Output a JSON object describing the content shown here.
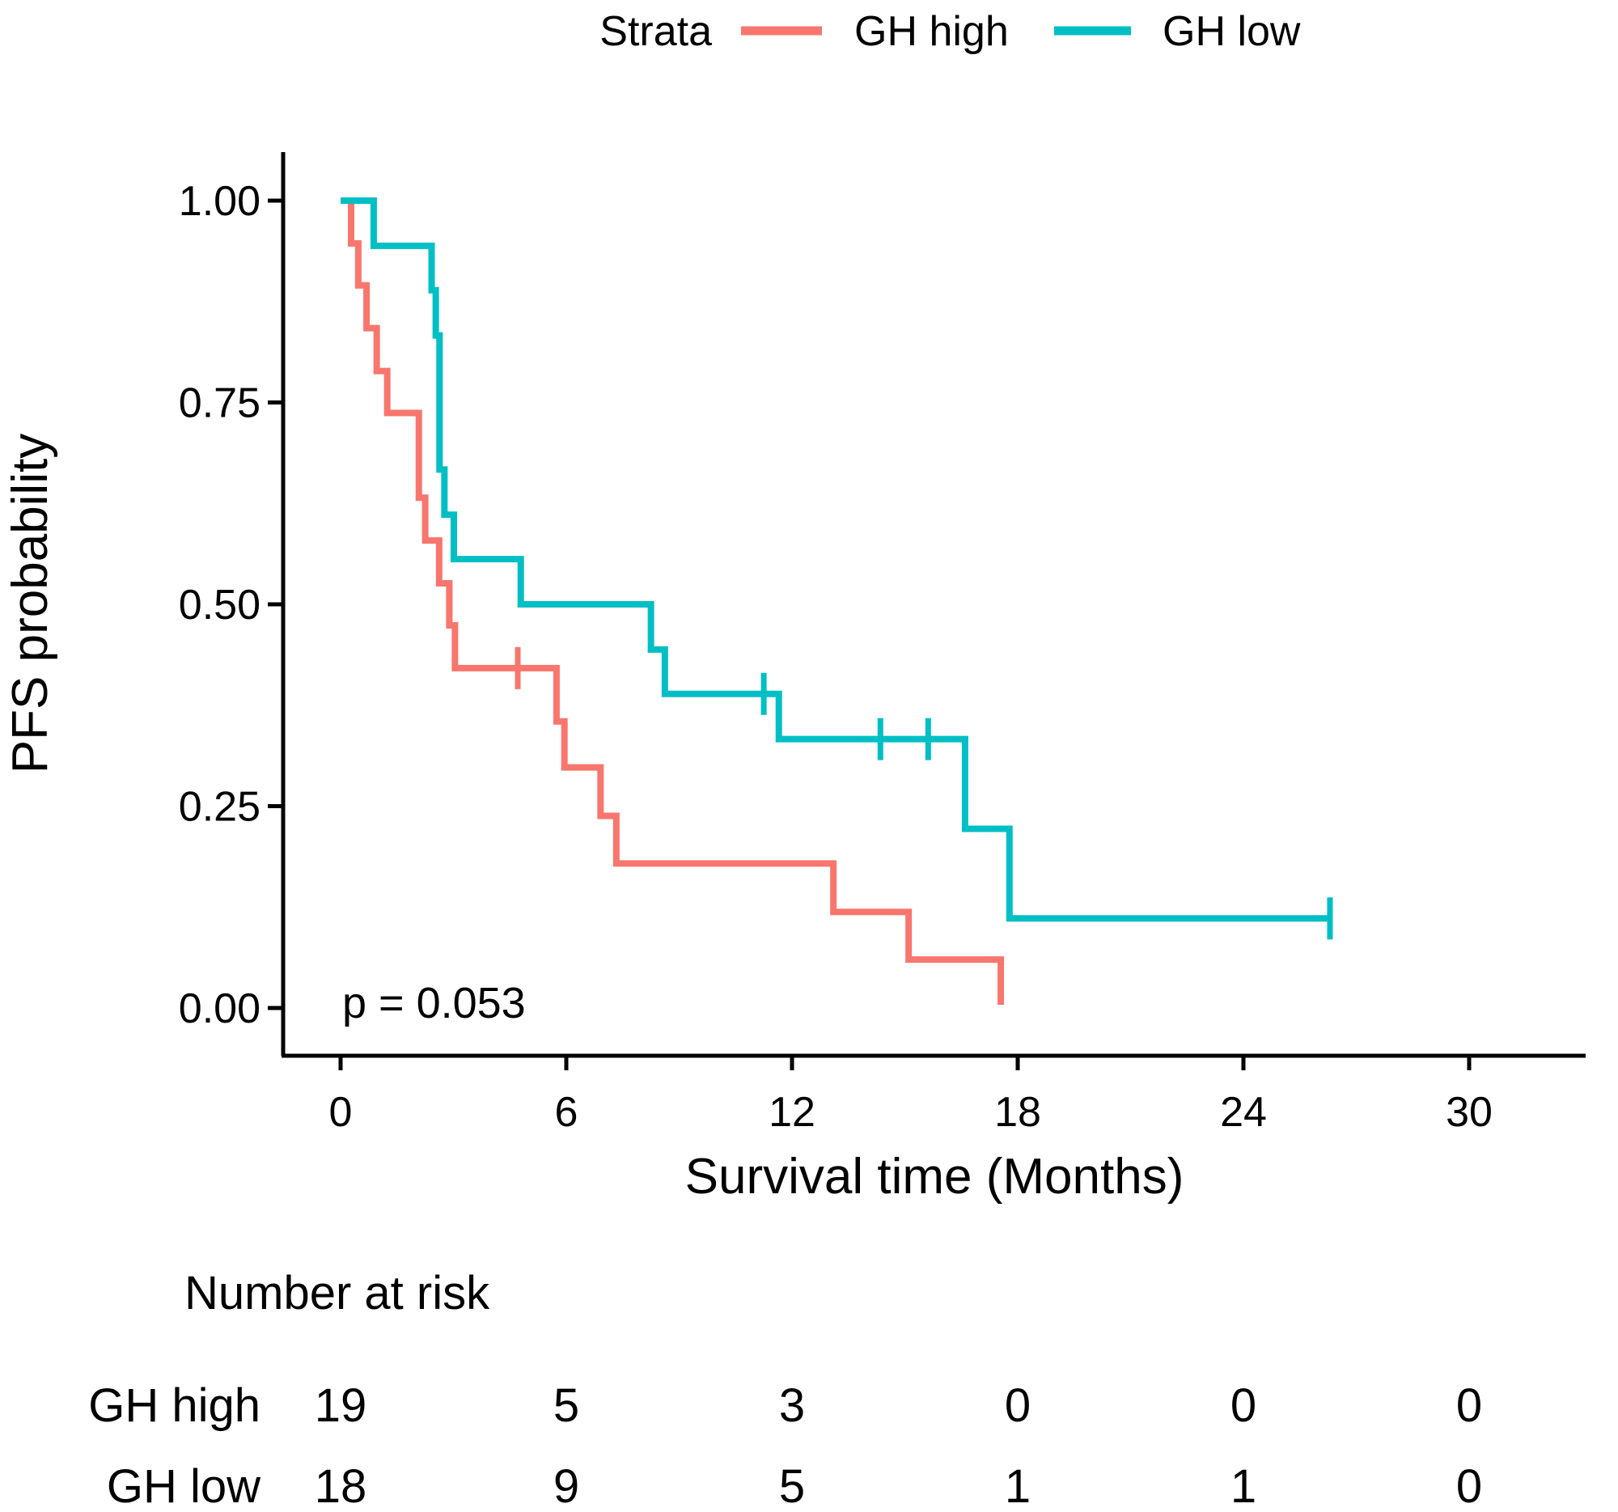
{
  "legend": {
    "title": "Strata",
    "items": [
      {
        "label": "GH high",
        "color": "#F8766D"
      },
      {
        "label": "GH low",
        "color": "#00BFC4"
      }
    ]
  },
  "chart_data": {
    "type": "line",
    "subtype": "kaplan-meier-step",
    "title": "",
    "xlabel": "Survival time (Months)",
    "ylabel": "PFS probability",
    "annotation": "p = 0.053",
    "xlim": [
      0,
      33
    ],
    "ylim": [
      0,
      1
    ],
    "xticks": [
      0,
      6,
      12,
      18,
      24,
      30
    ],
    "ytick_labels": [
      "0.00",
      "0.25",
      "0.50",
      "0.75",
      "1.00"
    ],
    "ytick_values": [
      0,
      0.25,
      0.5,
      0.75,
      1
    ],
    "grid": false,
    "legend_position": "top",
    "series": [
      {
        "name": "GH high",
        "color": "#F8766D",
        "n": 19,
        "steps": [
          [
            0.28,
            0.947
          ],
          [
            0.47,
            0.895
          ],
          [
            0.69,
            0.842
          ],
          [
            0.96,
            0.789
          ],
          [
            1.24,
            0.737
          ],
          [
            2.08,
            0.632
          ],
          [
            2.25,
            0.579
          ],
          [
            2.62,
            0.526
          ],
          [
            2.89,
            0.474
          ],
          [
            3.04,
            0.421
          ],
          [
            5.74,
            0.355
          ],
          [
            5.95,
            0.298
          ],
          [
            6.91,
            0.238
          ],
          [
            7.33,
            0.179
          ],
          [
            13.1,
            0.119
          ],
          [
            15.1,
            0.06
          ],
          [
            17.55,
            0.004
          ]
        ],
        "censors": [
          [
            4.71,
            0.421
          ]
        ],
        "tail_to": null
      },
      {
        "name": "GH low",
        "color": "#00BFC4",
        "n": 18,
        "steps": [
          [
            0.88,
            0.944
          ],
          [
            2.42,
            0.889
          ],
          [
            2.53,
            0.833
          ],
          [
            2.63,
            0.667
          ],
          [
            2.76,
            0.611
          ],
          [
            3.01,
            0.556
          ],
          [
            4.79,
            0.5
          ],
          [
            8.25,
            0.444
          ],
          [
            8.62,
            0.389
          ],
          [
            11.65,
            0.333
          ],
          [
            16.6,
            0.222
          ],
          [
            17.78,
            0.111
          ]
        ],
        "censors": [
          [
            11.25,
            0.389
          ],
          [
            14.35,
            0.333
          ],
          [
            15.62,
            0.333
          ],
          [
            26.3,
            0.111
          ]
        ],
        "tail_to": 26.3
      }
    ]
  },
  "risk_table": {
    "heading": "Number at risk",
    "columns": [
      0,
      6,
      12,
      18,
      24,
      30
    ],
    "rows": [
      {
        "label": "GH high",
        "color": "#F8766D",
        "values": [
          "19",
          "5",
          "3",
          "0",
          "0",
          "0"
        ]
      },
      {
        "label": "GH low",
        "color": "#00BFC4",
        "values": [
          "18",
          "9",
          "5",
          "1",
          "1",
          "0"
        ]
      }
    ]
  }
}
